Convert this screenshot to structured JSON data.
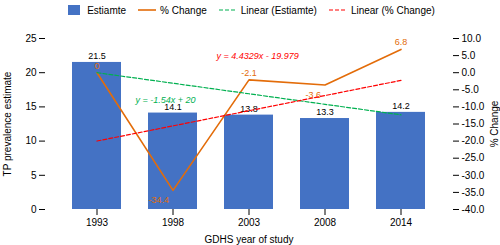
{
  "chart_data": {
    "type": "bar",
    "categories": [
      "1993",
      "1998",
      "2003",
      "2008",
      "2014"
    ],
    "xlabel": "GDHS year of study",
    "ylabel": "TP prevalence estimate",
    "ylabel_right": "% Change",
    "ylim": [
      0,
      25
    ],
    "yticks": [
      0,
      5,
      10,
      15,
      20,
      25
    ],
    "y2lim": [
      -40,
      10
    ],
    "y2ticks": [
      {
        "value": -40,
        "label": "-40.0"
      },
      {
        "value": -35,
        "label": "-35.0"
      },
      {
        "value": -30,
        "label": "-30.0"
      },
      {
        "value": -25,
        "label": "-25.0"
      },
      {
        "value": -20,
        "label": "-20.0"
      },
      {
        "value": -15,
        "label": "-15.0"
      },
      {
        "value": -10,
        "label": "-10.0"
      },
      {
        "value": -5,
        "label": "-5.0"
      },
      {
        "value": 0,
        "label": "0.0"
      },
      {
        "value": 5,
        "label": "5.0"
      },
      {
        "value": 10,
        "label": "10.0"
      }
    ],
    "series": [
      {
        "name": "Estiamte",
        "type": "bar",
        "color": "#4472C4",
        "values": [
          21.5,
          14.1,
          13.8,
          13.3,
          14.2
        ],
        "data_labels": true
      },
      {
        "name": "% Change",
        "type": "line",
        "axis": "y2",
        "color": "#E36C09",
        "values": [
          0,
          -34.4,
          -2.1,
          -3.6,
          6.8
        ],
        "data_labels": true
      },
      {
        "name": "Linear (Estiamte)",
        "type": "line",
        "line_style": "dashed",
        "color": "#00B050",
        "values": [
          20,
          18.46,
          16.92,
          15.38,
          13.84
        ]
      },
      {
        "name": "Linear (% Change)",
        "type": "line",
        "line_style": "dashed",
        "axis": "y2",
        "color": "#FF0000",
        "values": [
          -19.979,
          -15.5461,
          -11.1132,
          -6.6803,
          -2.2474
        ]
      }
    ],
    "annotations": [
      {
        "text": "y = -1.54x + 20",
        "color": "#00B050"
      },
      {
        "text": "y = 4.4329x - 19.979",
        "color": "#FF0000"
      }
    ],
    "legend": "top",
    "grid": false
  }
}
